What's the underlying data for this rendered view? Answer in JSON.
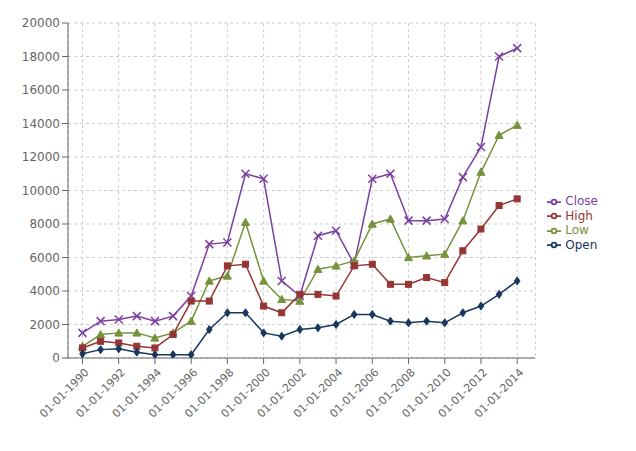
{
  "chart_data": {
    "type": "line",
    "x": [
      1990,
      1991,
      1992,
      1993,
      1994,
      1995,
      1996,
      1997,
      1998,
      1999,
      2000,
      2001,
      2002,
      2003,
      2004,
      2005,
      2006,
      2007,
      2008,
      2009,
      2010,
      2011,
      2012,
      2013,
      2014
    ],
    "series": [
      {
        "name": "Close",
        "color": "#7B3FA0",
        "marker": "x",
        "values": [
          1500,
          2200,
          2300,
          2500,
          2200,
          2500,
          3700,
          6800,
          6900,
          11000,
          10700,
          4600,
          3700,
          7300,
          7600,
          5600,
          10700,
          11000,
          8200,
          8200,
          8300,
          10800,
          12600,
          18000,
          18500
        ]
      },
      {
        "name": "Low",
        "color": "#76923C",
        "marker": "triangle",
        "values": [
          700,
          1400,
          1500,
          1500,
          1200,
          1500,
          2200,
          4600,
          4900,
          8100,
          4600,
          3500,
          3400,
          5300,
          5500,
          5800,
          8000,
          8300,
          6000,
          6100,
          6200,
          8200,
          11100,
          13300,
          13900
        ]
      },
      {
        "name": "High",
        "color": "#943634",
        "marker": "square",
        "values": [
          600,
          1000,
          900,
          700,
          600,
          1400,
          3400,
          3400,
          5500,
          5600,
          3100,
          2700,
          3800,
          3800,
          3700,
          5500,
          5600,
          4400,
          4400,
          4800,
          4500,
          6400,
          7700,
          9100,
          9500
        ]
      },
      {
        "name": "Open",
        "color": "#17375E",
        "marker": "diamond",
        "values": [
          250,
          500,
          550,
          350,
          200,
          200,
          200,
          1700,
          2700,
          2700,
          1500,
          1300,
          1700,
          1800,
          2000,
          2600,
          2600,
          2200,
          2100,
          2200,
          2100,
          2700,
          3100,
          3800,
          4600
        ]
      }
    ],
    "xlim": [
      1989.2,
      2015.0
    ],
    "xticks": [
      {
        "value": 1990,
        "label": "01-01-1990"
      },
      {
        "value": 1992,
        "label": "01-01-1992"
      },
      {
        "value": 1994,
        "label": "01-01-1994"
      },
      {
        "value": 1996,
        "label": "01-01-1996"
      },
      {
        "value": 1998,
        "label": "01-01-1998"
      },
      {
        "value": 2000,
        "label": "01-01-2000"
      },
      {
        "value": 2002,
        "label": "01-01-2002"
      },
      {
        "value": 2004,
        "label": "01-01-2004"
      },
      {
        "value": 2006,
        "label": "01-01-2006"
      },
      {
        "value": 2008,
        "label": "01-01-2008"
      },
      {
        "value": 2010,
        "label": "01-01-2010"
      },
      {
        "value": 2012,
        "label": "01-01-2012"
      },
      {
        "value": 2014,
        "label": "01-01-2014"
      }
    ],
    "ylim": [
      0,
      20000
    ],
    "yticks": [
      0,
      2000,
      4000,
      6000,
      8000,
      10000,
      12000,
      14000,
      16000,
      18000,
      20000
    ],
    "grid": true,
    "legend": "right"
  }
}
